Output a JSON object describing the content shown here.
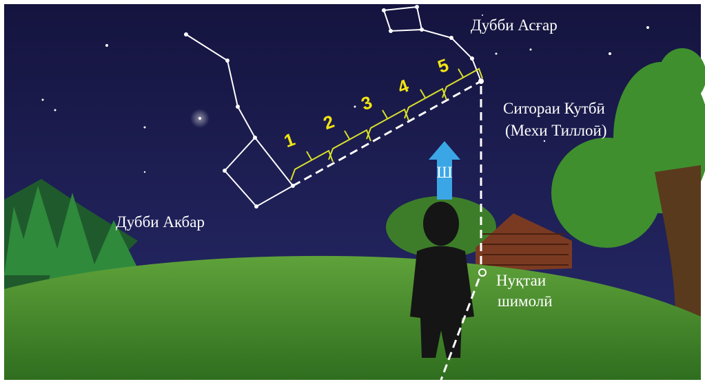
{
  "labels": {
    "little_dipper": "Дубби Асғар",
    "polaris": "Ситораи Кутбӣ",
    "polaris_alt": "(Мехи Тиллоӣ)",
    "big_dipper": "Дубби Акбар",
    "north_point_1": "Нуқтаи",
    "north_point_2": "шимолӣ",
    "north": "Ш"
  },
  "steps": [
    "1",
    "2",
    "3",
    "4",
    "5"
  ]
}
